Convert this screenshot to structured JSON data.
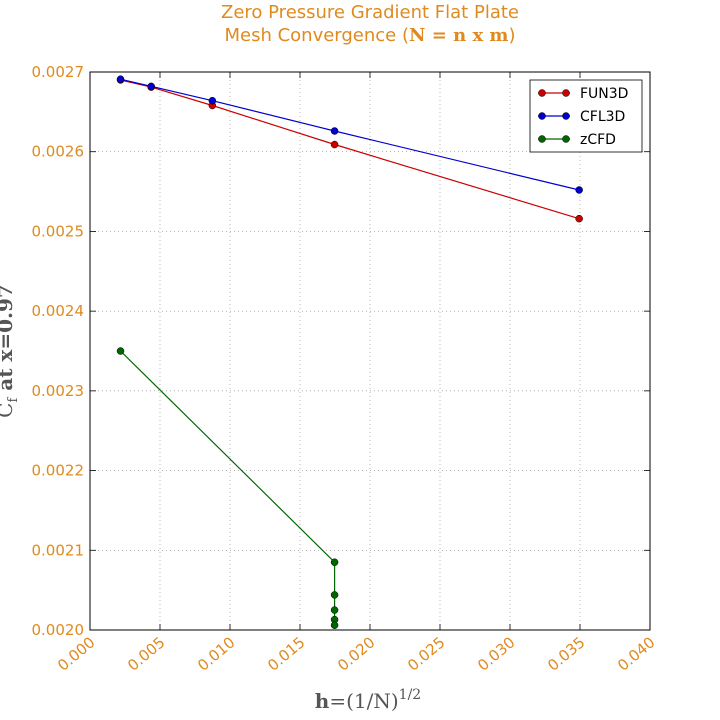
{
  "chart_data": {
    "type": "line",
    "title_line1": "Zero Pressure Gradient Flat Plate",
    "title_line2_prefix": "Mesh Convergence (",
    "title_line2_math": "N = n x m",
    "title_line2_suffix": ")",
    "xlabel": "h=(1/N)^1/2",
    "ylabel": "Cf at x=0.97",
    "xlim": [
      0.0,
      0.04
    ],
    "ylim": [
      0.002,
      0.0027
    ],
    "x_ticks": [
      "0.000",
      "0.005",
      "0.010",
      "0.015",
      "0.020",
      "0.025",
      "0.030",
      "0.035",
      "0.040"
    ],
    "y_ticks": [
      "0.0020",
      "0.0021",
      "0.0022",
      "0.0023",
      "0.0024",
      "0.0025",
      "0.0026",
      "0.0027"
    ],
    "grid": true,
    "legend_position": "top-right",
    "series": [
      {
        "name": "FUN3D",
        "color": "#cc0000",
        "x": [
          0.00218,
          0.00437,
          0.00874,
          0.01747,
          0.03494
        ],
        "y": [
          0.00269,
          0.002681,
          0.002658,
          0.002609,
          0.002516
        ]
      },
      {
        "name": "CFL3D",
        "color": "#0000cc",
        "x": [
          0.00218,
          0.00437,
          0.00874,
          0.01747,
          0.03494
        ],
        "y": [
          0.002691,
          0.002682,
          0.002664,
          0.002626,
          0.002552
        ]
      },
      {
        "name": "zCFD",
        "color": "#006600",
        "x": [
          0.00218,
          0.01747,
          0.01747,
          0.01747,
          0.01747,
          0.01747
        ],
        "y": [
          0.00235,
          0.002085,
          0.002044,
          0.002025,
          0.002013,
          0.002006
        ]
      }
    ]
  }
}
